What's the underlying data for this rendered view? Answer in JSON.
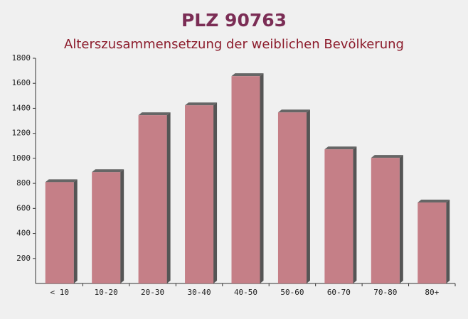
{
  "chart_data": {
    "type": "bar",
    "title": "PLZ 90763",
    "subtitle": "Alterszusammensetzung der weiblichen Bevölkerung",
    "categories": [
      "< 10",
      "10-20",
      "20-30",
      "30-40",
      "40-50",
      "50-60",
      "60-70",
      "70-80",
      "80+"
    ],
    "values": [
      810,
      890,
      1345,
      1424,
      1657,
      1367,
      1072,
      1004,
      647
    ],
    "color": "#c0727b",
    "ylim": [
      0,
      1800
    ],
    "yticks": [
      200,
      400,
      600,
      800,
      1000,
      1200,
      1400,
      1600,
      1800
    ]
  }
}
